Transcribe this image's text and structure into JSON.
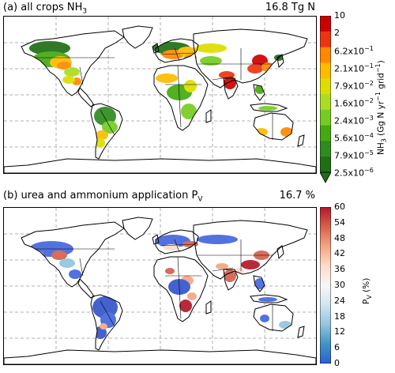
{
  "panel_a": {
    "title_prefix": "(a) all crops NH",
    "title_sub": "3",
    "total": "16.8 Tg N",
    "colorbar": {
      "label_prefix": "NH",
      "label_sub": "3",
      "label_rest": " (Gg N yr",
      "label_sup1": "−1",
      "label_mid": " grid",
      "label_sup2": "−1",
      "label_end": ")",
      "ticks": [
        {
          "m": "10",
          "e": ""
        },
        {
          "m": "2",
          "e": ""
        },
        {
          "m": "6.2x10",
          "e": "−1"
        },
        {
          "m": "2.1x10",
          "e": "−1"
        },
        {
          "m": "7.9x10",
          "e": "−2"
        },
        {
          "m": "1.6x10",
          "e": "−2"
        },
        {
          "m": "2.4x10",
          "e": "−3"
        },
        {
          "m": "5.6x10",
          "e": "−4"
        },
        {
          "m": "7.9x10",
          "e": "−5"
        },
        {
          "m": "2.5x10",
          "e": "−6"
        }
      ],
      "colors": [
        "#cc0000",
        "#ee3311",
        "#ff8800",
        "#ffbb00",
        "#dddd00",
        "#aadd22",
        "#77cc22",
        "#44aa11",
        "#2e8b1e",
        "#1f6f15"
      ],
      "extend": "min"
    }
  },
  "panel_b": {
    "title_prefix": "(b) urea and ammonium application P",
    "title_sub": "V",
    "total": "16.7 %",
    "colorbar": {
      "label_prefix": "P",
      "label_sub": "V",
      "label_rest": " (%)",
      "ticks": [
        "60",
        "54",
        "48",
        "42",
        "36",
        "30",
        "24",
        "18",
        "12",
        "6",
        "0"
      ],
      "colors_top_to_bottom": [
        "#b2182b",
        "#d6604d",
        "#f4a582",
        "#fddbc7",
        "#f7f7f7",
        "#d1e5f0",
        "#92c5de",
        "#4393c3",
        "#2c5fd6"
      ]
    }
  }
}
